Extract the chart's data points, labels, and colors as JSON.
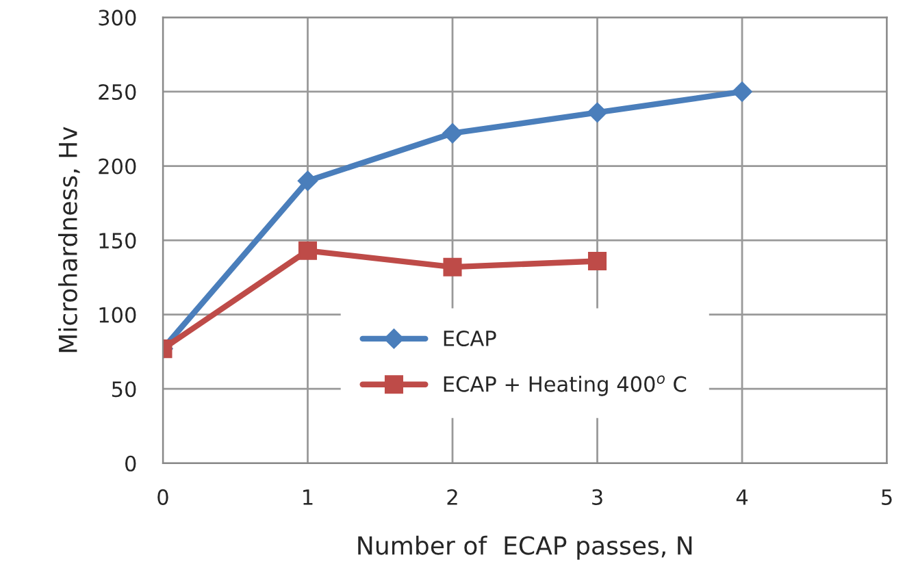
{
  "chart_data": {
    "type": "line",
    "xlabel": "Number of  ECAP passes, N",
    "ylabel": "Microhardness, Hv",
    "x": [
      0,
      1,
      2,
      3,
      4
    ],
    "series": [
      {
        "name": "ECAP",
        "color": "#4a7ebb",
        "marker": "diamond",
        "values": [
          77,
          190,
          222,
          236,
          250
        ]
      },
      {
        "name": "ECAP + Heating 400$^{o}$ C",
        "color": "#be4b48",
        "marker": "square",
        "values": [
          77,
          143,
          132,
          136,
          null
        ]
      }
    ],
    "xlim": [
      0,
      5
    ],
    "xticks": [
      0,
      1,
      2,
      3,
      4,
      5
    ],
    "ylim": [
      0,
      300
    ],
    "yticks": [
      0,
      50,
      100,
      150,
      200,
      250,
      300
    ],
    "grid": true,
    "legend": "bottom",
    "line_style": "solid"
  }
}
